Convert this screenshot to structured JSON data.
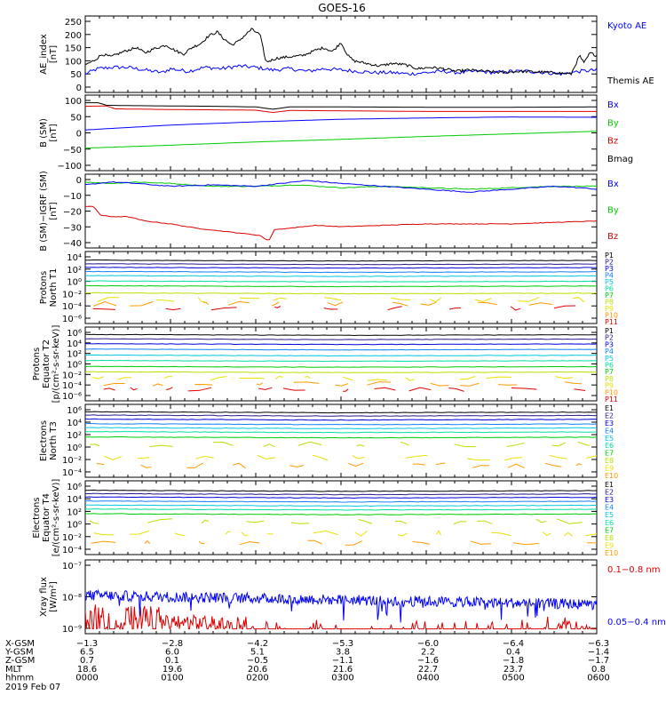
{
  "title": "GOES-16",
  "date_label": "2019 Feb 07",
  "colors": {
    "black": "#000000",
    "blue": "#0000ff",
    "green": "#00cc00",
    "red": "#dd0000",
    "ch": [
      "#000000",
      "#2a1a8a",
      "#0000dd",
      "#1080ff",
      "#00c8e0",
      "#00e0a0",
      "#00cc00",
      "#b8e000",
      "#e8e000",
      "#ff9900",
      "#dd0000"
    ]
  },
  "panels": [
    {
      "id": "ae",
      "ylabel": [
        "AE_index",
        "[nT]"
      ],
      "ticks": [
        "250",
        "200",
        "150",
        "100",
        "50",
        "0"
      ],
      "legend": [
        {
          "text": "Kyoto AE",
          "color": "#0000ff"
        },
        {
          "text": "Themis AE",
          "color": "#000000"
        }
      ]
    },
    {
      "id": "b",
      "ylabel": [
        "B (SM)",
        "[nT]"
      ],
      "ticks": [
        "100",
        "50",
        "0",
        "−50",
        "−100"
      ],
      "legend": [
        {
          "text": "Bx",
          "color": "#0000ff"
        },
        {
          "text": "By",
          "color": "#00cc00"
        },
        {
          "text": "Bz",
          "color": "#dd0000"
        },
        {
          "text": "Bmag",
          "color": "#000000"
        }
      ]
    },
    {
      "id": "bigrf",
      "ylabel": [
        "B (SM)−IGRF (SM)",
        "[nT]"
      ],
      "ticks": [
        "0",
        "−10",
        "−20",
        "−30",
        "−40"
      ],
      "legend": [
        {
          "text": "Bx",
          "color": "#0000ff"
        },
        {
          "text": "By",
          "color": "#00cc00"
        },
        {
          "text": "Bz",
          "color": "#dd0000"
        }
      ]
    },
    {
      "id": "pn",
      "ylabel": [
        "Protons",
        "North T1"
      ],
      "ticks": [
        "10⁴",
        "10²",
        "10⁰",
        "10⁻²",
        "10⁻⁴",
        "10⁻⁶"
      ],
      "legend": [
        "P1",
        "P2",
        "P3",
        "P4",
        "P5",
        "P6",
        "P7",
        "P8",
        "P9",
        "P10",
        "P11"
      ]
    },
    {
      "id": "pe",
      "ylabel": [
        "Protons",
        "Equator T2",
        "[p/(cm²-s-sr-keV)]"
      ],
      "ticks": [
        "10⁶",
        "10⁴",
        "10²",
        "10⁰",
        "10⁻²",
        "10⁻⁴",
        "10⁻⁶"
      ],
      "legend": [
        "P1",
        "P2",
        "P3",
        "P4",
        "P5",
        "P6",
        "P7",
        "P8",
        "P9",
        "P10",
        "P11"
      ]
    },
    {
      "id": "en",
      "ylabel": [
        "Electrons",
        "North T3"
      ],
      "ticks": [
        "10⁶",
        "10⁴",
        "10²",
        "10⁰",
        "10⁻²",
        "10⁻⁴"
      ],
      "legend": [
        "E1",
        "E2",
        "E3",
        "E4",
        "E5",
        "E6",
        "E7",
        "E8",
        "E9",
        "E10"
      ]
    },
    {
      "id": "ee",
      "ylabel": [
        "Electrons",
        "Equator T4",
        "[e/(cm²-s-sr-keV)]"
      ],
      "ticks": [
        "10⁶",
        "10⁴",
        "10²",
        "10⁰",
        "10⁻²",
        "10⁻⁴"
      ],
      "legend": [
        "E1",
        "E2",
        "E3",
        "E4",
        "E5",
        "E6",
        "E7",
        "E8",
        "E9",
        "E10"
      ]
    },
    {
      "id": "xr",
      "ylabel": [
        "Xray flux",
        "[W/m²]"
      ],
      "ticks": [
        "10⁻⁷",
        "10⁻⁸",
        "10⁻⁹"
      ],
      "legend": [
        {
          "text": "0.1−0.8 nm",
          "color": "#dd0000"
        },
        {
          "text": "0.05−0.4 nm",
          "color": "#0000ff"
        }
      ]
    }
  ],
  "ephemeris": [
    {
      "label": "X-GSM",
      "values": [
        "−1.3",
        "−2.8",
        "−4.2",
        "−5.3",
        "−6.0",
        "−6.4",
        "−6.3"
      ]
    },
    {
      "label": "Y-GSM",
      "values": [
        "6.5",
        "6.0",
        "5.1",
        "3.8",
        "2.2",
        "0.4",
        "−1.4"
      ]
    },
    {
      "label": "Z-GSM",
      "values": [
        "0.7",
        "0.1",
        "−0.5",
        "−1.1",
        "−1.6",
        "−1.8",
        "−1.7"
      ]
    },
    {
      "label": "MLT",
      "values": [
        "18.6",
        "19.6",
        "20.6",
        "21.6",
        "22.7",
        "23.7",
        "0.8"
      ]
    },
    {
      "label": "hhmm",
      "values": [
        "0000",
        "0100",
        "0200",
        "0300",
        "0400",
        "0500",
        "0600"
      ]
    }
  ],
  "chart_data": {
    "type": "line",
    "x_range_hours": [
      0,
      6
    ],
    "ae": {
      "ylim": [
        0,
        250
      ],
      "themis": [
        [
          0,
          85
        ],
        [
          0.1,
          100
        ],
        [
          0.2,
          125
        ],
        [
          0.3,
          115
        ],
        [
          0.45,
          135
        ],
        [
          0.6,
          150
        ],
        [
          0.7,
          130
        ],
        [
          0.8,
          145
        ],
        [
          0.95,
          160
        ],
        [
          1.05,
          140
        ],
        [
          1.15,
          125
        ],
        [
          1.25,
          150
        ],
        [
          1.35,
          165
        ],
        [
          1.45,
          195
        ],
        [
          1.55,
          210
        ],
        [
          1.62,
          185
        ],
        [
          1.72,
          160
        ],
        [
          1.8,
          175
        ],
        [
          1.95,
          220
        ],
        [
          2.05,
          200
        ],
        [
          2.12,
          95
        ],
        [
          2.25,
          110
        ],
        [
          2.4,
          115
        ],
        [
          2.55,
          120
        ],
        [
          2.7,
          140
        ],
        [
          2.8,
          150
        ],
        [
          2.9,
          135
        ],
        [
          3.0,
          170
        ],
        [
          3.08,
          120
        ],
        [
          3.15,
          100
        ],
        [
          3.3,
          90
        ],
        [
          3.45,
          80
        ],
        [
          3.6,
          90
        ],
        [
          3.75,
          85
        ],
        [
          3.9,
          70
        ],
        [
          4.05,
          75
        ],
        [
          4.2,
          70
        ],
        [
          4.35,
          60
        ],
        [
          4.5,
          65
        ],
        [
          4.7,
          60
        ],
        [
          4.9,
          55
        ],
        [
          5.1,
          60
        ],
        [
          5.3,
          58
        ],
        [
          5.5,
          55
        ],
        [
          5.7,
          50
        ],
        [
          5.8,
          120
        ],
        [
          5.85,
          90
        ],
        [
          5.92,
          130
        ],
        [
          6.0,
          120
        ]
      ],
      "kyoto": [
        [
          0,
          50
        ],
        [
          0.15,
          70
        ],
        [
          0.3,
          75
        ],
        [
          0.5,
          75
        ],
        [
          0.7,
          65
        ],
        [
          0.9,
          55
        ],
        [
          1.0,
          70
        ],
        [
          1.2,
          60
        ],
        [
          1.4,
          75
        ],
        [
          1.6,
          70
        ],
        [
          1.8,
          80
        ],
        [
          2.0,
          75
        ],
        [
          2.2,
          65
        ],
        [
          2.4,
          70
        ],
        [
          2.6,
          60
        ],
        [
          2.8,
          70
        ],
        [
          3.0,
          65
        ],
        [
          3.2,
          60
        ],
        [
          3.4,
          55
        ],
        [
          3.6,
          55
        ],
        [
          3.8,
          50
        ],
        [
          4.0,
          55
        ],
        [
          4.2,
          60
        ],
        [
          4.4,
          55
        ],
        [
          4.6,
          60
        ],
        [
          4.8,
          55
        ],
        [
          5.0,
          60
        ],
        [
          5.2,
          60
        ],
        [
          5.4,
          55
        ],
        [
          5.6,
          50
        ],
        [
          5.8,
          60
        ],
        [
          6.0,
          65
        ]
      ]
    },
    "b_sm": {
      "ylim": [
        -100,
        100
      ],
      "bmag": [
        [
          0,
          93
        ],
        [
          0.15,
          93
        ],
        [
          0.25,
          85
        ],
        [
          0.5,
          84
        ],
        [
          1.0,
          83
        ],
        [
          1.5,
          82
        ],
        [
          2.0,
          80
        ],
        [
          2.2,
          73
        ],
        [
          2.4,
          80
        ],
        [
          3.0,
          80
        ],
        [
          4.0,
          79
        ],
        [
          5.0,
          79
        ],
        [
          6.0,
          80
        ]
      ],
      "bz": [
        [
          0,
          82
        ],
        [
          0.25,
          83
        ],
        [
          0.35,
          74
        ],
        [
          1.0,
          72
        ],
        [
          2.0,
          70
        ],
        [
          2.2,
          63
        ],
        [
          2.4,
          69
        ],
        [
          3.0,
          68
        ],
        [
          4.0,
          66
        ],
        [
          5.0,
          66
        ],
        [
          6.0,
          66
        ]
      ],
      "bx": [
        [
          0,
          9
        ],
        [
          1.0,
          24
        ],
        [
          2.0,
          34
        ],
        [
          3.0,
          42
        ],
        [
          4.0,
          46
        ],
        [
          5.0,
          49
        ],
        [
          6.0,
          48
        ]
      ],
      "by": [
        [
          0,
          -47
        ],
        [
          1.0,
          -38
        ],
        [
          2.0,
          -28
        ],
        [
          3.0,
          -20
        ],
        [
          4.0,
          -11
        ],
        [
          5.0,
          -3
        ],
        [
          6.0,
          5
        ]
      ]
    },
    "b_igrf": {
      "ylim": [
        -40,
        5
      ],
      "bx": [
        [
          0,
          0
        ],
        [
          0.3,
          2
        ],
        [
          0.6,
          1
        ],
        [
          1.0,
          -1
        ],
        [
          1.5,
          0
        ],
        [
          2.0,
          -1
        ],
        [
          2.3,
          1
        ],
        [
          2.6,
          3
        ],
        [
          3.0,
          1
        ],
        [
          3.5,
          -1
        ],
        [
          4.0,
          -3
        ],
        [
          4.5,
          -5
        ],
        [
          5.0,
          -3
        ],
        [
          5.5,
          -1
        ],
        [
          5.8,
          -2
        ],
        [
          6.0,
          -3
        ]
      ],
      "by": [
        [
          0,
          2
        ],
        [
          0.3,
          1
        ],
        [
          0.6,
          2
        ],
        [
          1.0,
          1
        ],
        [
          1.5,
          -1
        ],
        [
          2.0,
          -1
        ],
        [
          2.5,
          0
        ],
        [
          3.0,
          -2
        ],
        [
          3.5,
          -1
        ],
        [
          4.0,
          -2
        ],
        [
          4.5,
          -3
        ],
        [
          5.0,
          -2
        ],
        [
          5.5,
          -1
        ],
        [
          6.0,
          -1
        ]
      ],
      "bz": [
        [
          0,
          -15
        ],
        [
          0.1,
          -15
        ],
        [
          0.18,
          -21
        ],
        [
          0.3,
          -22
        ],
        [
          0.5,
          -22
        ],
        [
          0.7,
          -25
        ],
        [
          1.0,
          -27
        ],
        [
          1.3,
          -30
        ],
        [
          1.6,
          -32
        ],
        [
          1.9,
          -34
        ],
        [
          2.05,
          -35
        ],
        [
          2.15,
          -39
        ],
        [
          2.22,
          -31
        ],
        [
          2.4,
          -30
        ],
        [
          2.7,
          -28
        ],
        [
          3.0,
          -29
        ],
        [
          3.5,
          -28
        ],
        [
          4.0,
          -27
        ],
        [
          4.5,
          -27
        ],
        [
          5.0,
          -27
        ],
        [
          5.5,
          -26
        ],
        [
          6.0,
          -25
        ]
      ]
    },
    "protons_north_t1": {
      "log10_range": [
        -7,
        4.5
      ],
      "channel_levels_log10": [
        3.2,
        2.6,
        2.0,
        1.3,
        0.6,
        -0.3,
        -1.1,
        -2.3,
        -3.3,
        -4.0,
        -4.7
      ]
    },
    "protons_equator_t2": {
      "log10_range": [
        -7,
        6
      ],
      "channel_levels_log10": [
        4.8,
        4.0,
        3.1,
        2.1,
        1.0,
        0.0,
        -1.1,
        -2.1,
        -3.2,
        -4.2,
        -5.2
      ]
    },
    "electrons_north_t3": {
      "log10_range": [
        -4.5,
        6
      ],
      "channel_levels_log10": [
        5.0,
        4.5,
        3.9,
        3.2,
        2.6,
        2.0,
        1.2,
        0.2,
        -1.8,
        -3.0
      ]
    },
    "electrons_equator_t4": {
      "log10_range": [
        -4.5,
        6
      ],
      "channel_levels_log10": [
        4.7,
        4.2,
        3.7,
        3.1,
        2.5,
        1.9,
        1.2,
        0.2,
        -1.6,
        -3.0
      ]
    },
    "xray": {
      "log10_range": [
        -9.3,
        -7
      ],
      "long_0.1_0.8nm_typical_log10": -9.2,
      "short_0.05_0.4nm_typical_log10": -8.1
    }
  }
}
